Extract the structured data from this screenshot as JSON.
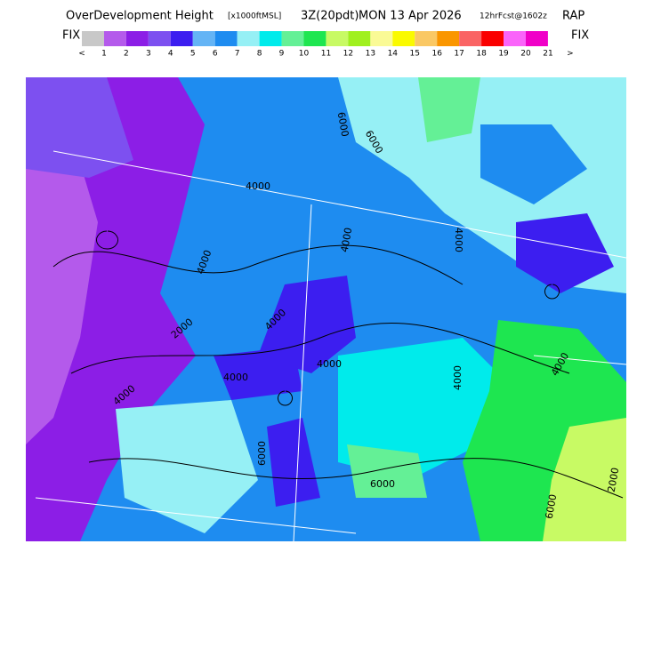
{
  "header": {
    "title": "OverDevelopment Height",
    "units": "[x1000ftMSL]",
    "run": "3Z(20pdt)",
    "date": "MON 13 Apr 2026",
    "forecast": "12hrFcst@1602z",
    "model": "RAP"
  },
  "legend": {
    "left_label": "FIX",
    "right_label": "FIX",
    "colors": [
      "#c8c8c8",
      "#b45aeb",
      "#8c1ee6",
      "#7d50f0",
      "#3c1ef0",
      "#64b4f5",
      "#1e8cf0",
      "#96f0f5",
      "#00ebeb",
      "#64f096",
      "#1ee650",
      "#c8fa64",
      "#a0f01e",
      "#fafa96",
      "#fafa00",
      "#fac864",
      "#fa9600",
      "#fa6464",
      "#fa0000",
      "#fa64fa",
      "#f000c8",
      "#ffffff"
    ],
    "labels": [
      "<",
      "1",
      "2",
      "3",
      "4",
      "5",
      "6",
      "7",
      "8",
      "9",
      "10",
      "11",
      "12",
      "13",
      "14",
      "15",
      "16",
      "17",
      "18",
      "19",
      "20",
      "21",
      ">"
    ]
  },
  "map": {
    "contour_labels": [
      "4000",
      "4000",
      "4000",
      "4000",
      "4000",
      "4000",
      "4000",
      "4000",
      "4000",
      "4000",
      "6000",
      "6000",
      "6000",
      "6000",
      "6000",
      "2000",
      "2000"
    ]
  }
}
